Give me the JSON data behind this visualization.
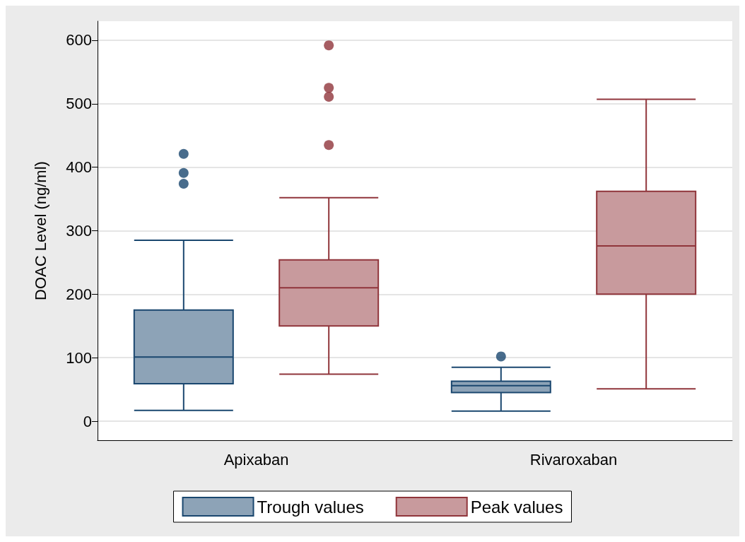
{
  "chart_data": {
    "type": "box",
    "ylabel": "DOAC Level (ng/ml)",
    "categories": [
      "Apixaban",
      "Rivaroxaban"
    ],
    "series": [
      {
        "name": "Trough values",
        "color": "#1a476f",
        "boxes": [
          {
            "low": 17,
            "q1": 59,
            "median": 101,
            "q3": 175,
            "high": 285,
            "outliers": [
              374,
              391,
              421
            ]
          },
          {
            "low": 16,
            "q1": 45,
            "median": 56,
            "q3": 63,
            "high": 85,
            "outliers": [
              102
            ]
          }
        ]
      },
      {
        "name": "Peak values",
        "color": "#90353b",
        "boxes": [
          {
            "low": 74,
            "q1": 150,
            "median": 210,
            "q3": 254,
            "high": 352,
            "outliers": [
              435,
              511,
              525,
              592
            ]
          },
          {
            "low": 51,
            "q1": 200,
            "median": 276,
            "q3": 362,
            "high": 507
          }
        ]
      }
    ],
    "ylim": [
      -30,
      630
    ],
    "yticks": [
      0,
      100,
      200,
      300,
      400,
      500,
      600
    ],
    "grid": "y",
    "legend": "bottom"
  }
}
